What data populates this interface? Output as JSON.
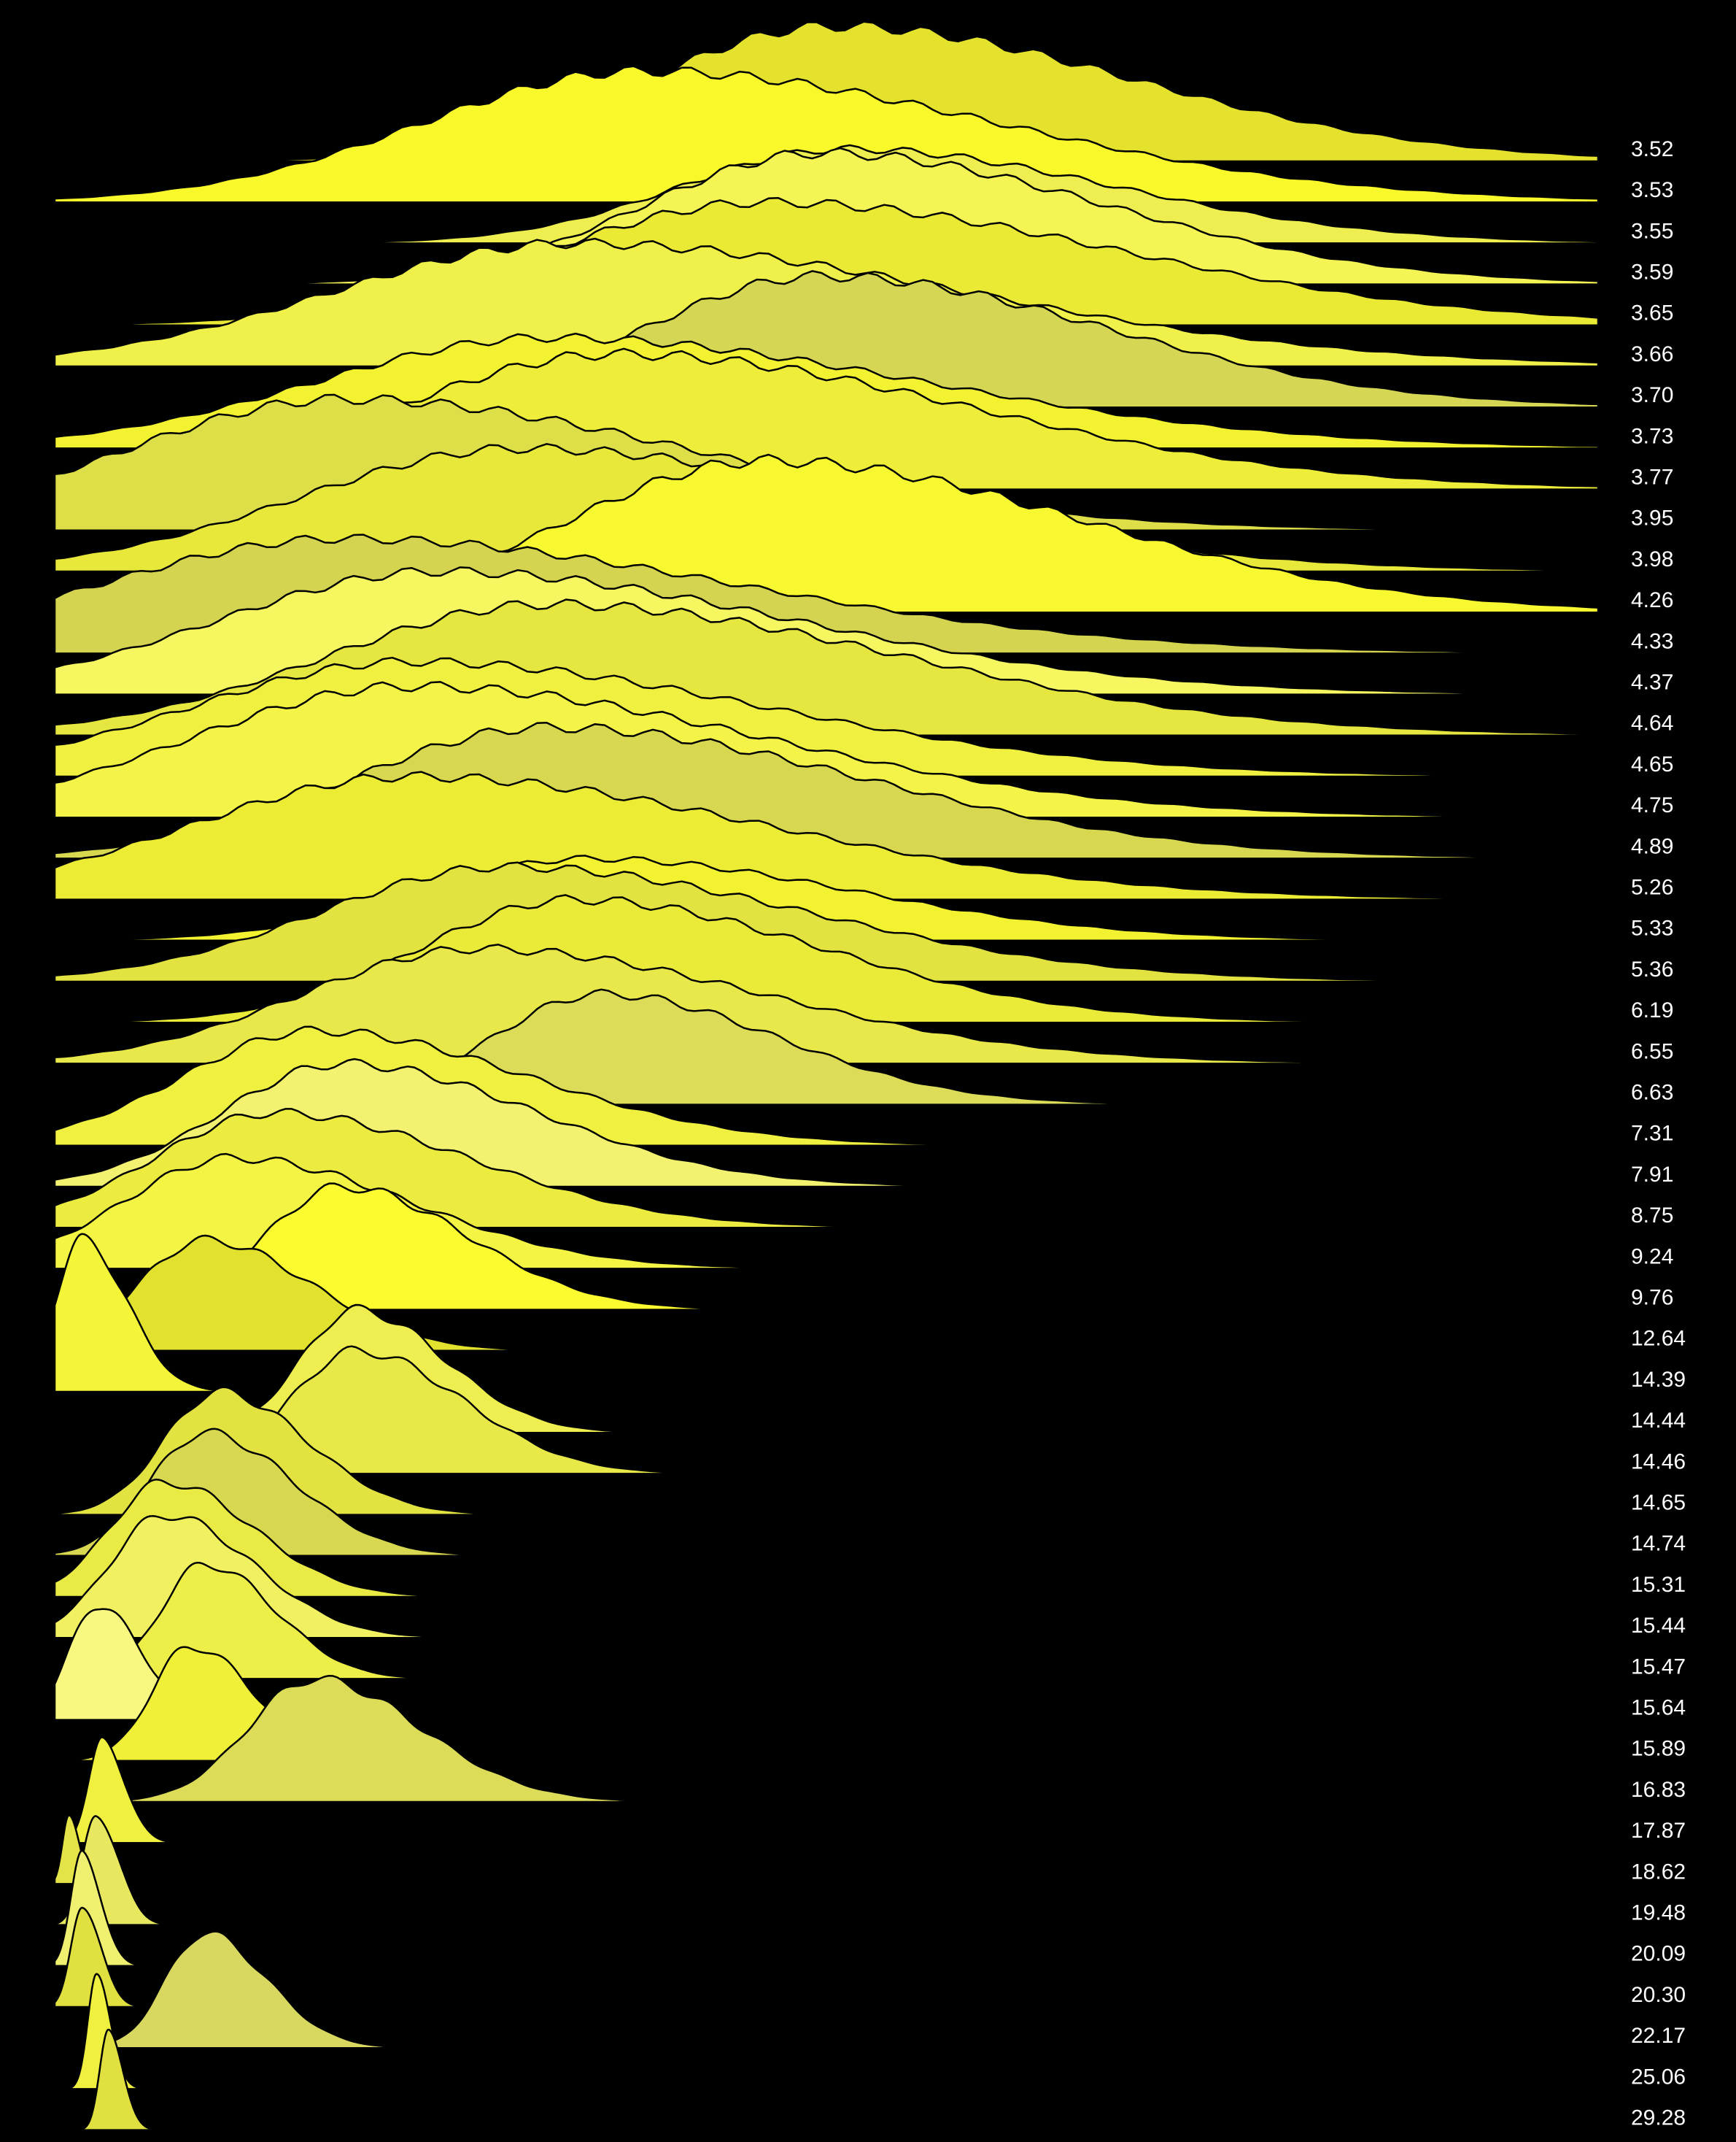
{
  "chart_data": {
    "type": "ridgeline",
    "series": [
      {
        "name": "3.52",
        "color": "#e4e22c",
        "peak": 50.4,
        "spread": 15,
        "height": 3.3
      },
      {
        "name": "3.53",
        "color": "#f8f82a",
        "peak": 38,
        "spread": 17.7,
        "height": 3.2
      },
      {
        "name": "3.55",
        "color": "#eeee50",
        "peak": 51.3,
        "spread": 13.3,
        "height": 2.3
      },
      {
        "name": "3.59",
        "color": "#f4f455",
        "peak": 49.6,
        "spread": 14.2,
        "height": 3.2
      },
      {
        "name": "3.65",
        "color": "#eaea35",
        "peak": 46,
        "spread": 17.7,
        "height": 3
      },
      {
        "name": "3.66",
        "color": "#f0f04a",
        "peak": 33.6,
        "spread": 19.5,
        "height": 3
      },
      {
        "name": "3.70",
        "color": "#d6d655",
        "peak": 49.6,
        "spread": 14.2,
        "height": 3.2
      },
      {
        "name": "3.73",
        "color": "#f2f230",
        "peak": 31.9,
        "spread": 18.6,
        "height": 2.7
      },
      {
        "name": "3.77",
        "color": "#eded3a",
        "peak": 36.3,
        "spread": 17.7,
        "height": 3.3
      },
      {
        "name": "3.95",
        "color": "#dede48",
        "peak": 18.6,
        "spread": 17.7,
        "height": 3.2
      },
      {
        "name": "3.98",
        "color": "#e8e83a",
        "peak": 30.1,
        "spread": 17.7,
        "height": 3
      },
      {
        "name": "4.26",
        "color": "#f8f830",
        "peak": 46,
        "spread": 15.9,
        "height": 3.7
      },
      {
        "name": "4.33",
        "color": "#d4d450",
        "peak": 18.6,
        "spread": 19.5,
        "height": 2.8
      },
      {
        "name": "4.37",
        "color": "#f6f660",
        "peak": 24.8,
        "spread": 17.7,
        "height": 3
      },
      {
        "name": "4.64",
        "color": "#e6e640",
        "peak": 31.9,
        "spread": 17.7,
        "height": 3.2
      },
      {
        "name": "4.65",
        "color": "#f0f040",
        "peak": 23,
        "spread": 17.7,
        "height": 2.8
      },
      {
        "name": "4.75",
        "color": "#f4f448",
        "peak": 23,
        "spread": 17.7,
        "height": 3.2
      },
      {
        "name": "4.89",
        "color": "#d8d850",
        "peak": 31.9,
        "spread": 15.9,
        "height": 3.2
      },
      {
        "name": "5.26",
        "color": "#ecec35",
        "peak": 23,
        "spread": 17.7,
        "height": 3
      },
      {
        "name": "5.33",
        "color": "#f2f230",
        "peak": 34.5,
        "spread": 13.3,
        "height": 2
      },
      {
        "name": "5.36",
        "color": "#e2e240",
        "peak": 29.2,
        "spread": 15,
        "height": 2.8
      },
      {
        "name": "6.19",
        "color": "#eaea38",
        "peak": 33.6,
        "spread": 12.4,
        "height": 3
      },
      {
        "name": "6.55",
        "color": "#e8e84a",
        "peak": 27.4,
        "spread": 14.2,
        "height": 2.8
      },
      {
        "name": "6.63",
        "color": "#dcdc58",
        "peak": 35.4,
        "spread": 8.8,
        "height": 2.7
      },
      {
        "name": "7.31",
        "color": "#f0f040",
        "peak": 16.8,
        "spread": 10.6,
        "height": 2.8
      },
      {
        "name": "7.91",
        "color": "#f2f270",
        "peak": 18.6,
        "spread": 9.7,
        "height": 3
      },
      {
        "name": "8.75",
        "color": "#ecec40",
        "peak": 14.2,
        "spread": 9.7,
        "height": 2.8
      },
      {
        "name": "9.24",
        "color": "#f4f445",
        "peak": 11.5,
        "spread": 8.8,
        "height": 2.7
      },
      {
        "name": "9.76",
        "color": "#fbfb30",
        "peak": 18.6,
        "spread": 6.2,
        "height": 3
      },
      {
        "name": "12.64",
        "color": "#e2e22e",
        "peak": 9.7,
        "spread": 5.3,
        "height": 2.7
      },
      {
        "name": "14.39",
        "color": "#f4f438",
        "peak": 1.8,
        "spread": 2.2,
        "height": 3.7
      },
      {
        "name": "14.44",
        "color": "#eeee50",
        "peak": 19.5,
        "spread": 4.4,
        "height": 3
      },
      {
        "name": "14.46",
        "color": "#e8e848",
        "peak": 19.5,
        "spread": 5.3,
        "height": 3
      },
      {
        "name": "14.65",
        "color": "#e2e240",
        "peak": 10.6,
        "spread": 4.4,
        "height": 3
      },
      {
        "name": "14.74",
        "color": "#d8d850",
        "peak": 9.7,
        "spread": 4.4,
        "height": 3
      },
      {
        "name": "15.31",
        "color": "#eaea45",
        "peak": 7.1,
        "spread": 4.4,
        "height": 2.8
      },
      {
        "name": "15.44",
        "color": "#f0f060",
        "peak": 7.1,
        "spread": 4.4,
        "height": 3
      },
      {
        "name": "15.47",
        "color": "#eeee48",
        "peak": 9.7,
        "spread": 3.5,
        "height": 2.8
      },
      {
        "name": "15.64",
        "color": "#f8f880",
        "peak": 2.7,
        "spread": 2.2,
        "height": 2.8
      },
      {
        "name": "15.89",
        "color": "#f0f038",
        "peak": 8.8,
        "spread": 3.1,
        "height": 2.8
      },
      {
        "name": "16.83",
        "color": "#dcdc58",
        "peak": 16.8,
        "spread": 5.3,
        "height": 3
      },
      {
        "name": "17.87",
        "color": "#f0f040",
        "peak": 3.1,
        "spread": 1.1,
        "height": 2.5
      },
      {
        "name": "18.62",
        "color": "#e4e448",
        "peak": 0.9,
        "spread": 0.5,
        "height": 1.7
      },
      {
        "name": "19.48",
        "color": "#e8e860",
        "peak": 2.7,
        "spread": 1.1,
        "height": 2.7
      },
      {
        "name": "20.09",
        "color": "#f0f070",
        "peak": 1.8,
        "spread": 0.9,
        "height": 2.8
      },
      {
        "name": "20.30",
        "color": "#e0e040",
        "peak": 1.8,
        "spread": 0.9,
        "height": 2.5
      },
      {
        "name": "22.17",
        "color": "#d8d860",
        "peak": 9.7,
        "spread": 3.1,
        "height": 2.8
      },
      {
        "name": "25.06",
        "color": "#f0f040",
        "peak": 2.7,
        "spread": 0.7,
        "height": 2.7
      },
      {
        "name": "29.28",
        "color": "#e0e040",
        "peak": 3.5,
        "spread": 0.7,
        "height": 2.5
      }
    ]
  }
}
